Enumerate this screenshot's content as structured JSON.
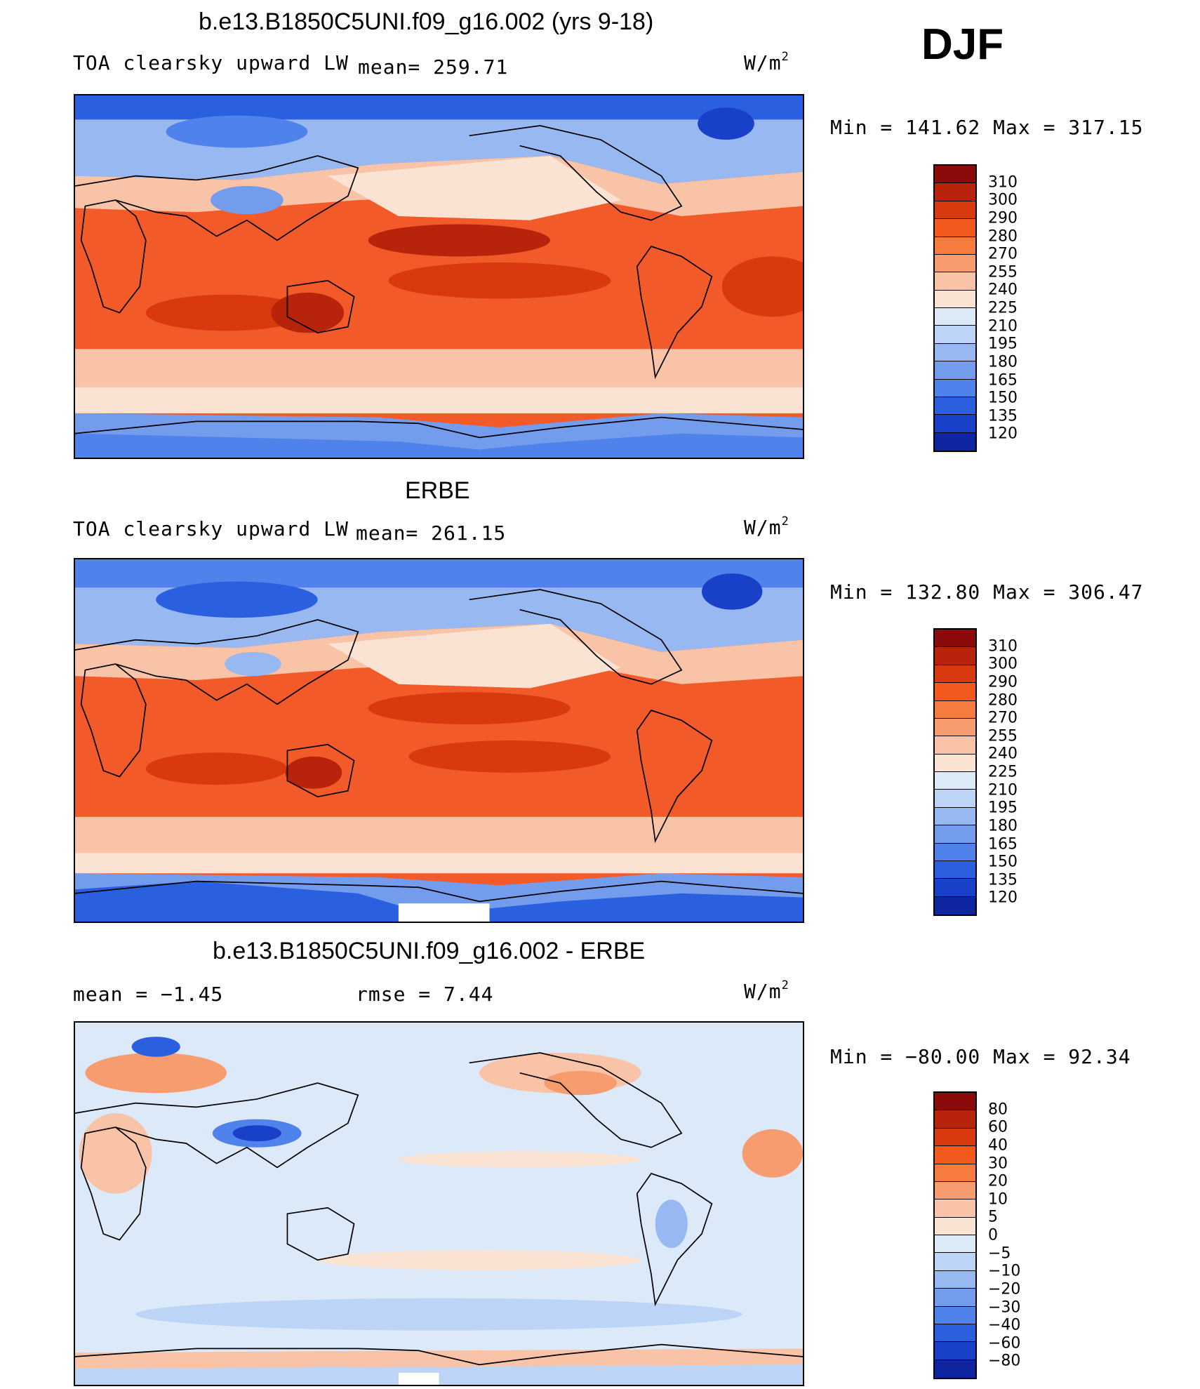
{
  "season": "DJF",
  "panels": [
    {
      "id": "model",
      "title": "b.e13.B1850C5UNI.f09_g16.002 (yrs 9-18)",
      "variable": "TOA clearsky upward LW",
      "stat_text": "mean= 259.71",
      "units": "W/m",
      "units_sup": "2",
      "minmax": "Min = 141.62 Max = 317.15",
      "levels": [
        "310",
        "300",
        "290",
        "280",
        "270",
        "255",
        "240",
        "225",
        "210",
        "195",
        "180",
        "165",
        "150",
        "135",
        "120"
      ],
      "colors": [
        "#8b0a0a",
        "#b8230c",
        "#d9390e",
        "#f15a1c",
        "#f77a3f",
        "#f79c6e",
        "#f8c3a6",
        "#fbe3d3",
        "#dceaf8",
        "#bcd4f5",
        "#98b8f1",
        "#739ced",
        "#4f82ea",
        "#2a60e0",
        "#1840c8",
        "#0e25a0"
      ],
      "base_color": "#f25a2a"
    },
    {
      "id": "obs",
      "title": "ERBE",
      "variable": "TOA clearsky upward LW",
      "stat_text": "mean= 261.15",
      "units": "W/m",
      "units_sup": "2",
      "minmax": "Min = 132.80 Max = 306.47",
      "levels": [
        "310",
        "300",
        "290",
        "280",
        "270",
        "255",
        "240",
        "225",
        "210",
        "195",
        "180",
        "165",
        "150",
        "135",
        "120"
      ],
      "colors": [
        "#8b0a0a",
        "#b8230c",
        "#d9390e",
        "#f15a1c",
        "#f77a3f",
        "#f79c6e",
        "#f8c3a6",
        "#fbe3d3",
        "#dceaf8",
        "#bcd4f5",
        "#98b8f1",
        "#739ced",
        "#4f82ea",
        "#2a60e0",
        "#1840c8",
        "#0e25a0"
      ],
      "base_color": "#f25a2a"
    },
    {
      "id": "diff",
      "title": "b.e13.B1850C5UNI.f09_g16.002 - ERBE",
      "mean_text": "mean =   −1.45",
      "rmse_text": "rmse =    7.44",
      "units": "W/m",
      "units_sup": "2",
      "minmax": "Min = −80.00 Max =  92.34",
      "levels": [
        "80",
        "60",
        "40",
        "30",
        "20",
        "10",
        "5",
        "0",
        "−5",
        "−10",
        "−20",
        "−30",
        "−40",
        "−60",
        "−80"
      ],
      "colors": [
        "#8b0a0a",
        "#b8230c",
        "#d9390e",
        "#f15a1c",
        "#f77a3f",
        "#f79c6e",
        "#f8c3a6",
        "#fbe3d3",
        "#dceaf8",
        "#bcd4f5",
        "#98b8f1",
        "#739ced",
        "#4f82ea",
        "#2a60e0",
        "#1840c8",
        "#0e25a0"
      ],
      "base_color": "#dce9f9"
    }
  ]
}
